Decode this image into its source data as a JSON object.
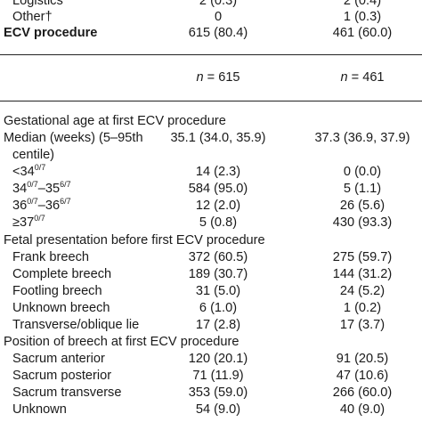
{
  "top_rows": [
    {
      "label": "Logistics",
      "c1": "2 (0.3)",
      "c2": "2 (0.4)"
    },
    {
      "label": "Other†",
      "c1": "0",
      "c2": "1 (0.3)"
    },
    {
      "label": "ECV procedure",
      "c1": "615 (80.4)",
      "c2": "461 (60.0)"
    }
  ],
  "n_row": {
    "n_symbol": "n",
    "c1": "= 615",
    "c2": "= 461"
  },
  "section_ga": {
    "heading": "Gestational age at first ECV procedure",
    "median_label_line1": "Median (weeks) (5–95th",
    "median_label_line2": "centile)",
    "median_c1": "35.1 (34.0, 35.9)",
    "median_c2": "37.3 (36.9, 37.9)",
    "rows": [
      {
        "label_main": "<34",
        "label_sup": "0/7",
        "c1": "14 (2.3)",
        "c2": "0 (0.0)"
      },
      {
        "label_main": "34",
        "label_sup": "0/7",
        "label_mid": "–35",
        "label_sup2": "6/7",
        "c1": "584 (95.0)",
        "c2": "5 (1.1)"
      },
      {
        "label_main": "36",
        "label_sup": "0/7",
        "label_mid": "–36",
        "label_sup2": "6/7",
        "c1": "12 (2.0)",
        "c2": "26 (5.6)"
      },
      {
        "label_main": "≥37",
        "label_sup": "0/7",
        "c1": "5 (0.8)",
        "c2": "430 (93.3)"
      }
    ]
  },
  "section_fp": {
    "heading": "Fetal presentation before first ECV procedure",
    "rows": [
      {
        "label": "Frank breech",
        "c1": "372 (60.5)",
        "c2": "275 (59.7)"
      },
      {
        "label": "Complete breech",
        "c1": "189 (30.7)",
        "c2": "144 (31.2)"
      },
      {
        "label": "Footling breech",
        "c1": "31 (5.0)",
        "c2": "24 (5.2)"
      },
      {
        "label": "Unknown breech",
        "c1": "6 (1.0)",
        "c2": "1 (0.2)"
      },
      {
        "label": "Transverse/oblique lie",
        "c1": "17 (2.8)",
        "c2": "17 (3.7)"
      }
    ]
  },
  "section_pb": {
    "heading": "Position of breech at first ECV procedure",
    "rows": [
      {
        "label": "Sacrum anterior",
        "c1": "120 (20.1)",
        "c2": "91 (20.5)"
      },
      {
        "label": "Sacrum posterior",
        "c1": "71 (11.9)",
        "c2": "47 (10.6)"
      },
      {
        "label": "Sacrum transverse",
        "c1": "353 (59.0)",
        "c2": "266 (60.0)"
      },
      {
        "label": "Unknown",
        "c1": "54 (9.0)",
        "c2": "40 (9.0)"
      }
    ]
  }
}
